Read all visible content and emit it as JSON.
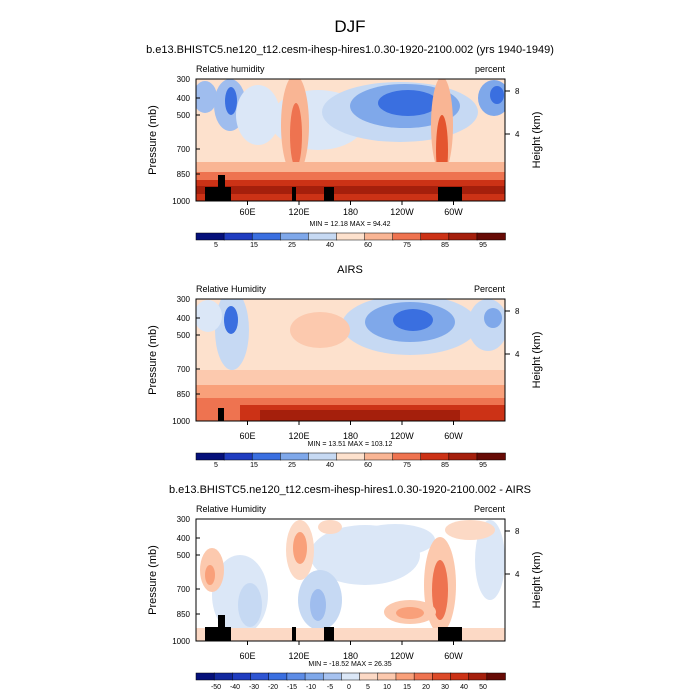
{
  "page_title": "DJF",
  "chart_data": [
    {
      "type": "heatmap",
      "title": "b.e13.BHISTC5.ne120_t12.cesm-ihesp-hires1.0.30-1920-2100.002 (yrs 1940-1949)",
      "left_label": "Relative humidity",
      "right_label": "percent",
      "ylabel": "Pressure (mb)",
      "y2label": "Height (km)",
      "x_ticks": [
        "60E",
        "120E",
        "180",
        "120W",
        "60W"
      ],
      "y_ticks": [
        "300",
        "400",
        "500",
        "700",
        "850",
        "1000"
      ],
      "y2_ticks": [
        "8",
        "4"
      ],
      "stats": "MIN = 12.18   MAX = 94.42",
      "min": 12.18,
      "max": 94.42,
      "colorbar_labels": [
        "5",
        "15",
        "25",
        "40",
        "60",
        "75",
        "85",
        "95"
      ]
    },
    {
      "type": "heatmap",
      "title": "AIRS",
      "left_label": "Relative Humidity",
      "right_label": "Percent",
      "ylabel": "Pressure (mb)",
      "y2label": "Height (km)",
      "x_ticks": [
        "60E",
        "120E",
        "180",
        "120W",
        "60W"
      ],
      "y_ticks": [
        "300",
        "400",
        "500",
        "700",
        "850",
        "1000"
      ],
      "y2_ticks": [
        "8",
        "4"
      ],
      "stats": "MIN = 13.51   MAX = 103.12",
      "min": 13.51,
      "max": 103.12,
      "colorbar_labels": [
        "5",
        "15",
        "25",
        "40",
        "60",
        "75",
        "85",
        "95"
      ]
    },
    {
      "type": "heatmap",
      "title": "b.e13.BHISTC5.ne120_t12.cesm-ihesp-hires1.0.30-1920-2100.002 - AIRS",
      "left_label": "Relative Humidity",
      "right_label": "Percent",
      "ylabel": "Pressure (mb)",
      "y2label": "Height (km)",
      "x_ticks": [
        "60E",
        "120E",
        "180",
        "120W",
        "60W"
      ],
      "y_ticks": [
        "300",
        "400",
        "500",
        "700",
        "850",
        "1000"
      ],
      "y2_ticks": [
        "8",
        "4"
      ],
      "stats": "MIN = -18.52   MAX = 26.35",
      "min": -18.52,
      "max": 26.35,
      "colorbar_labels": [
        "-50",
        "-40",
        "-30",
        "-20",
        "-15",
        "-10",
        "-5",
        "0",
        "5",
        "10",
        "15",
        "20",
        "30",
        "40",
        "50"
      ]
    }
  ]
}
